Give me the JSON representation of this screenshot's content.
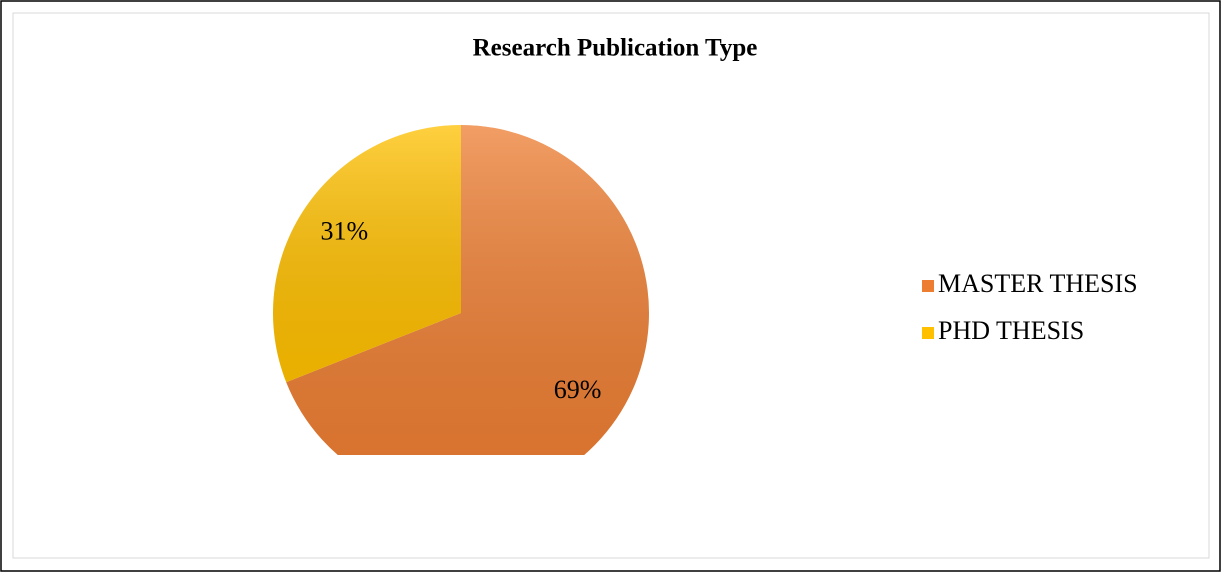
{
  "chart_data": {
    "type": "pie",
    "title": "Research Publication Type",
    "categories": [
      "MASTER THESIS",
      "PHD THESIS"
    ],
    "values": [
      69,
      31
    ],
    "value_labels": [
      "69%",
      "31%"
    ],
    "colors": [
      "#ED7D31",
      "#FFC000"
    ],
    "legend": "right"
  }
}
